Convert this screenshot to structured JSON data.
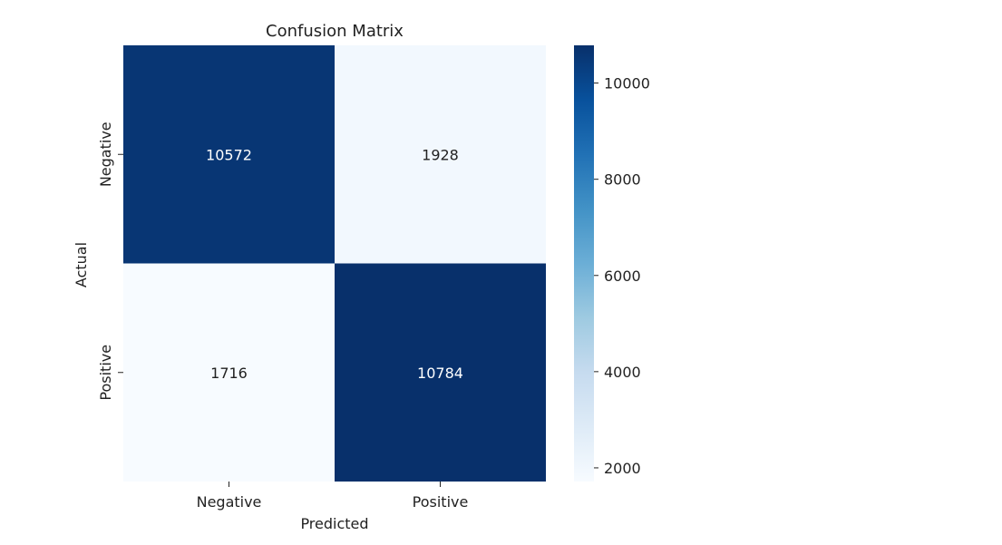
{
  "chart_data": {
    "type": "heatmap",
    "title": "Confusion Matrix",
    "xlabel": "Predicted",
    "ylabel": "Actual",
    "x_categories": [
      "Negative",
      "Positive"
    ],
    "y_categories": [
      "Negative",
      "Positive"
    ],
    "values": [
      [
        10572,
        1928
      ],
      [
        1716,
        10784
      ]
    ],
    "colormap": "Blues",
    "colorbar": {
      "min": 1716,
      "max": 10784,
      "ticks": [
        2000,
        4000,
        6000,
        8000,
        10000
      ],
      "tick_labels": [
        "2000",
        "4000",
        "6000",
        "8000",
        "10000"
      ]
    },
    "annotation_colors": {
      "dark_cell_text": "#ffffff",
      "light_cell_text": "#222222"
    },
    "grid": false
  }
}
